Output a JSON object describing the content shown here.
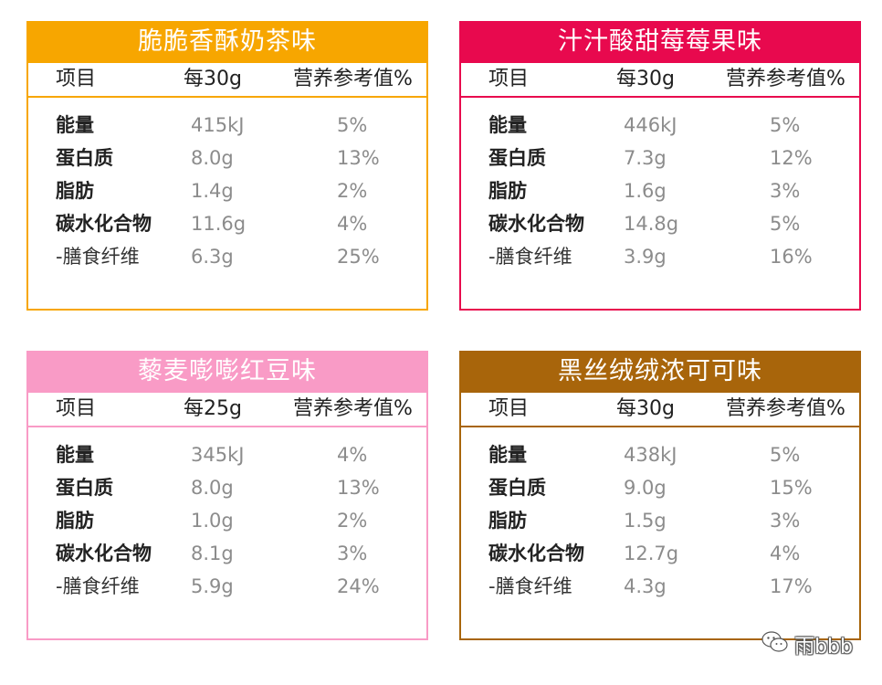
{
  "columns": {
    "name": "项目",
    "pct": "营养参考值%"
  },
  "cards": [
    {
      "title": "脆脆香酥奶茶味",
      "accent": "#f7a600",
      "serving": "每30g",
      "rows": [
        {
          "name": "能量",
          "amount": "415kJ",
          "pct": "5%"
        },
        {
          "name": "蛋白质",
          "amount": "8.0g",
          "pct": "13%"
        },
        {
          "name": "脂肪",
          "amount": "1.4g",
          "pct": "2%"
        },
        {
          "name": "碳水化合物",
          "amount": "11.6g",
          "pct": "4%"
        },
        {
          "name": "-膳食纤维",
          "amount": "6.3g",
          "pct": "25%"
        }
      ]
    },
    {
      "title": "汁汁酸甜莓莓果味",
      "accent": "#e8094e",
      "serving": "每30g",
      "rows": [
        {
          "name": "能量",
          "amount": "446kJ",
          "pct": "5%"
        },
        {
          "name": "蛋白质",
          "amount": "7.3g",
          "pct": "12%"
        },
        {
          "name": "脂肪",
          "amount": "1.6g",
          "pct": "3%"
        },
        {
          "name": "碳水化合物",
          "amount": "14.8g",
          "pct": "5%"
        },
        {
          "name": "-膳食纤维",
          "amount": "3.9g",
          "pct": "16%"
        }
      ]
    },
    {
      "title": "藜麦嘭嘭红豆味",
      "accent": "#f99bc6",
      "serving": "每25g",
      "rows": [
        {
          "name": "能量",
          "amount": "345kJ",
          "pct": "4%"
        },
        {
          "name": "蛋白质",
          "amount": "8.0g",
          "pct": "13%"
        },
        {
          "name": "脂肪",
          "amount": "1.0g",
          "pct": "2%"
        },
        {
          "name": "碳水化合物",
          "amount": "8.1g",
          "pct": "3%"
        },
        {
          "name": "-膳食纤维",
          "amount": "5.9g",
          "pct": "24%"
        }
      ]
    },
    {
      "title": "黑丝绒绒浓可可味",
      "accent": "#a8650b",
      "serving": "每30g",
      "rows": [
        {
          "name": "能量",
          "amount": "438kJ",
          "pct": "5%"
        },
        {
          "name": "蛋白质",
          "amount": "9.0g",
          "pct": "15%"
        },
        {
          "name": "脂肪",
          "amount": "1.5g",
          "pct": "3%"
        },
        {
          "name": "碳水化合物",
          "amount": "12.7g",
          "pct": "4%"
        },
        {
          "name": "-膳食纤维",
          "amount": "4.3g",
          "pct": "17%"
        }
      ]
    }
  ],
  "watermark": {
    "icon": "wechat-icon",
    "text": "雨bbb"
  }
}
